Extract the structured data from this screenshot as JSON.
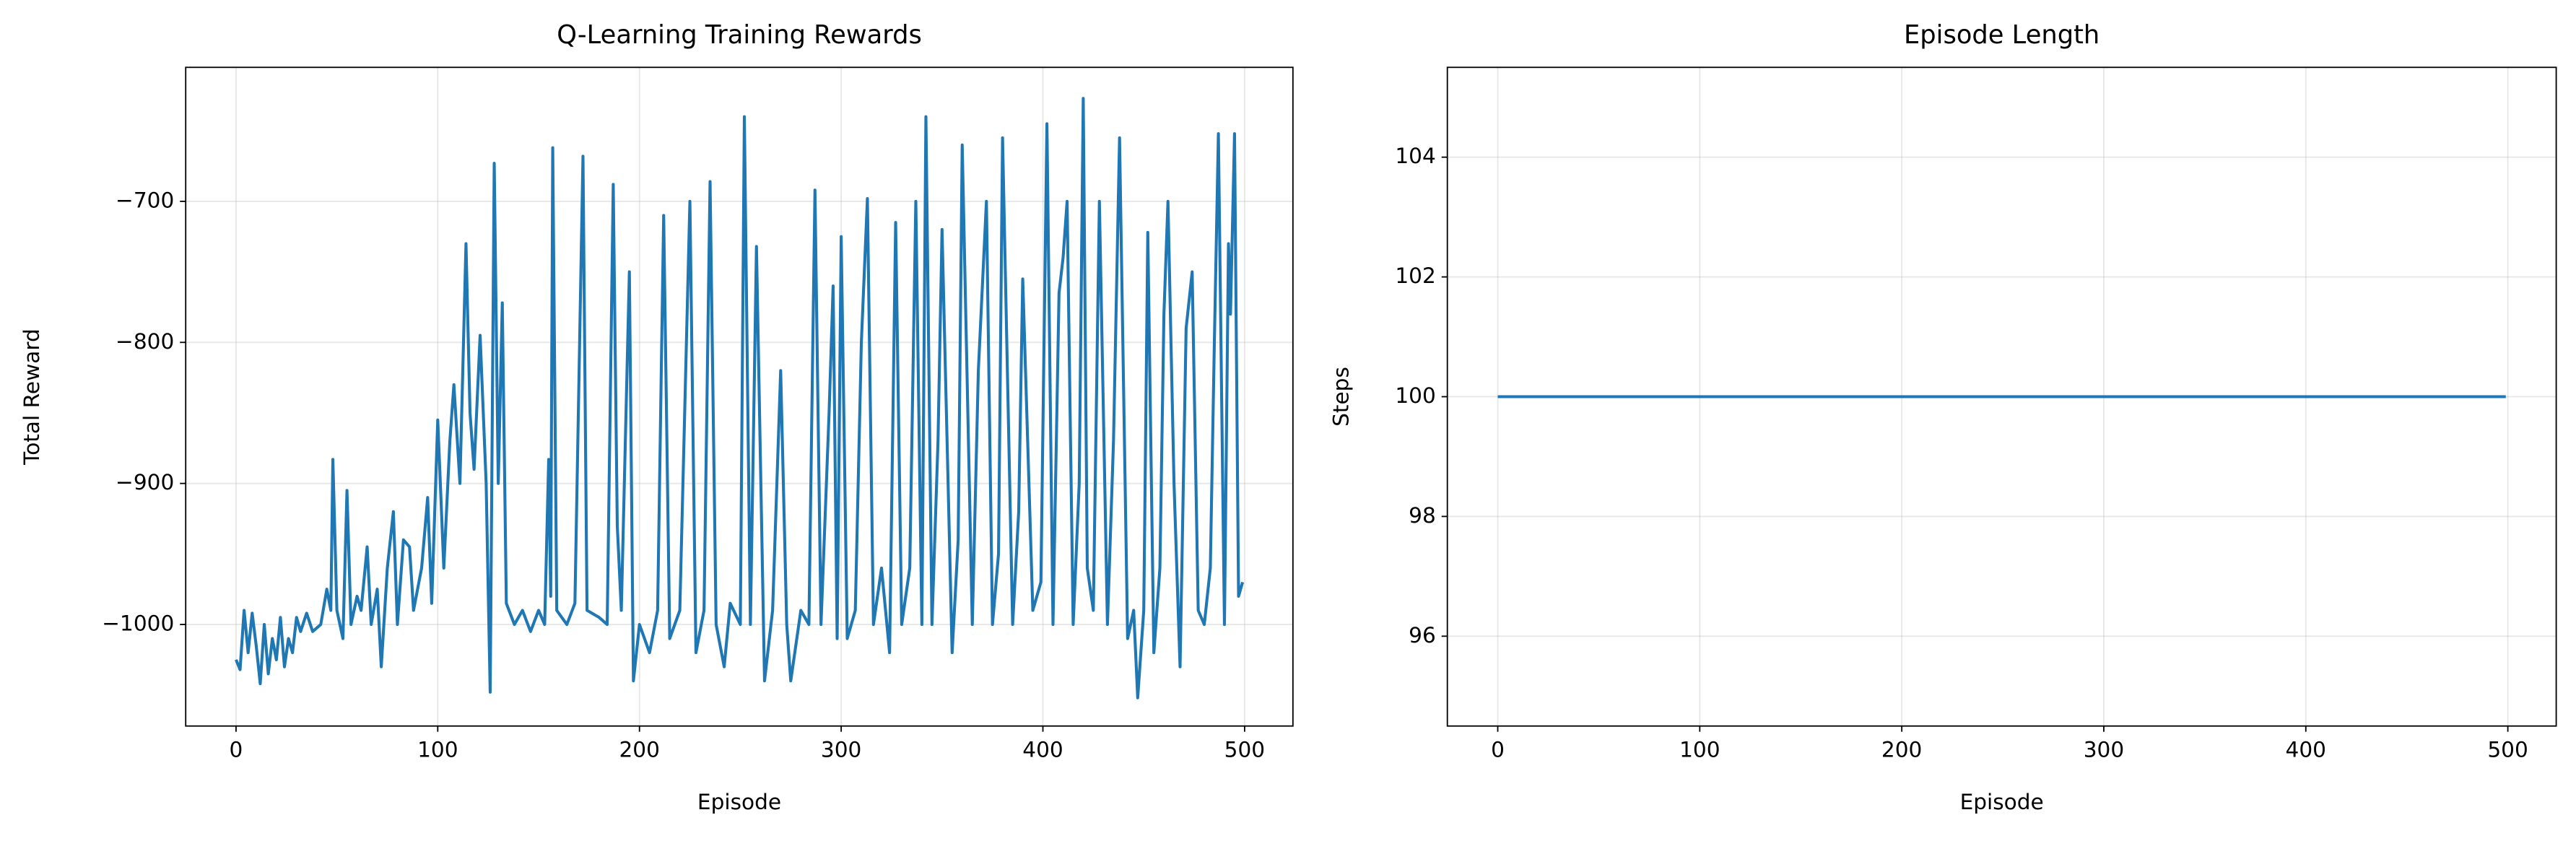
{
  "chart_data": [
    {
      "type": "line",
      "title": "Q-Learning Training Rewards",
      "xlabel": "Episode",
      "ylabel": "Total Reward",
      "xlim": [
        -24.95,
        523.95
      ],
      "xticks": [
        0,
        100,
        200,
        300,
        400,
        500
      ],
      "ylim": [
        -1072,
        -605
      ],
      "yticks": [
        {
          "value": -1000,
          "label": "−1000"
        },
        {
          "value": -900,
          "label": "−900"
        },
        {
          "value": -800,
          "label": "−800"
        },
        {
          "value": -700,
          "label": "−700"
        }
      ],
      "grid": true,
      "x": [
        0,
        2,
        4,
        6,
        8,
        10,
        12,
        14,
        16,
        18,
        20,
        22,
        24,
        26,
        28,
        30,
        32,
        35,
        38,
        42,
        45,
        47,
        48,
        50,
        53,
        55,
        57,
        60,
        62,
        65,
        67,
        70,
        72,
        75,
        78,
        80,
        83,
        86,
        88,
        92,
        95,
        97,
        100,
        103,
        106,
        108,
        111,
        114,
        116,
        118,
        121,
        124,
        126,
        128,
        130,
        132,
        134,
        138,
        142,
        146,
        150,
        153,
        155,
        156,
        157,
        159,
        164,
        168,
        172,
        174,
        180,
        184,
        187,
        189,
        191,
        195,
        197,
        200,
        205,
        209,
        212,
        215,
        220,
        225,
        228,
        232,
        235,
        238,
        242,
        245,
        250,
        252,
        255,
        258,
        262,
        266,
        270,
        273,
        275,
        280,
        284,
        287,
        290,
        294,
        296,
        298,
        300,
        303,
        307,
        310,
        313,
        316,
        320,
        324,
        327,
        330,
        334,
        337,
        340,
        342,
        345,
        348,
        350,
        355,
        358,
        360,
        365,
        368,
        372,
        375,
        378,
        380,
        385,
        388,
        390,
        395,
        399,
        402,
        405,
        408,
        410,
        412,
        415,
        418,
        420,
        422,
        425,
        428,
        432,
        435,
        438,
        442,
        445,
        447,
        450,
        452,
        455,
        458,
        460,
        462,
        465,
        468,
        471,
        474,
        477,
        480,
        483,
        485,
        487,
        490,
        492,
        493,
        495,
        497,
        499
      ],
      "series": [
        {
          "color": "#1f77b4",
          "values": [
            -1025,
            -1032,
            -990,
            -1020,
            -992,
            -1015,
            -1042,
            -1000,
            -1035,
            -1010,
            -1025,
            -995,
            -1030,
            -1010,
            -1020,
            -995,
            -1005,
            -992,
            -1005,
            -1000,
            -975,
            -990,
            -883,
            -990,
            -1010,
            -905,
            -1000,
            -980,
            -990,
            -945,
            -1000,
            -975,
            -1030,
            -960,
            -920,
            -1000,
            -940,
            -945,
            -990,
            -960,
            -910,
            -985,
            -855,
            -960,
            -870,
            -830,
            -900,
            -730,
            -850,
            -890,
            -795,
            -900,
            -1048,
            -673,
            -900,
            -772,
            -985,
            -1000,
            -990,
            -1005,
            -990,
            -1000,
            -883,
            -980,
            -662,
            -990,
            -1000,
            -985,
            -668,
            -990,
            -995,
            -1000,
            -688,
            -930,
            -990,
            -750,
            -1040,
            -1000,
            -1020,
            -990,
            -710,
            -1010,
            -990,
            -700,
            -1020,
            -990,
            -686,
            -1000,
            -1030,
            -985,
            -1000,
            -640,
            -1000,
            -732,
            -1040,
            -990,
            -820,
            -1000,
            -1040,
            -990,
            -1000,
            -692,
            -1000,
            -850,
            -760,
            -1010,
            -725,
            -1010,
            -990,
            -800,
            -698,
            -1000,
            -960,
            -1020,
            -715,
            -1000,
            -960,
            -700,
            -1000,
            -640,
            -1000,
            -870,
            -720,
            -1020,
            -940,
            -660,
            -1000,
            -820,
            -700,
            -1000,
            -950,
            -655,
            -1000,
            -920,
            -755,
            -990,
            -970,
            -645,
            -1000,
            -765,
            -740,
            -700,
            -1000,
            -900,
            -627,
            -960,
            -990,
            -700,
            -1000,
            -870,
            -655,
            -1010,
            -990,
            -1052,
            -990,
            -722,
            -1020,
            -960,
            -780,
            -700,
            -900,
            -1030,
            -790,
            -750,
            -990,
            -1000,
            -960,
            -800,
            -652,
            -1000,
            -730,
            -780,
            -652,
            -980,
            -970
          ]
        }
      ]
    },
    {
      "type": "line",
      "title": "Episode Length",
      "xlabel": "Episode",
      "ylabel": "Steps",
      "xlim": [
        -24.95,
        523.95
      ],
      "xticks": [
        0,
        100,
        200,
        300,
        400,
        500
      ],
      "ylim": [
        94.5,
        105.5
      ],
      "yticks": [
        96,
        98,
        100,
        102,
        104
      ],
      "grid": true,
      "x": [
        0,
        499
      ],
      "series": [
        {
          "color": "#1f77b4",
          "values": [
            100,
            100
          ]
        }
      ]
    }
  ]
}
